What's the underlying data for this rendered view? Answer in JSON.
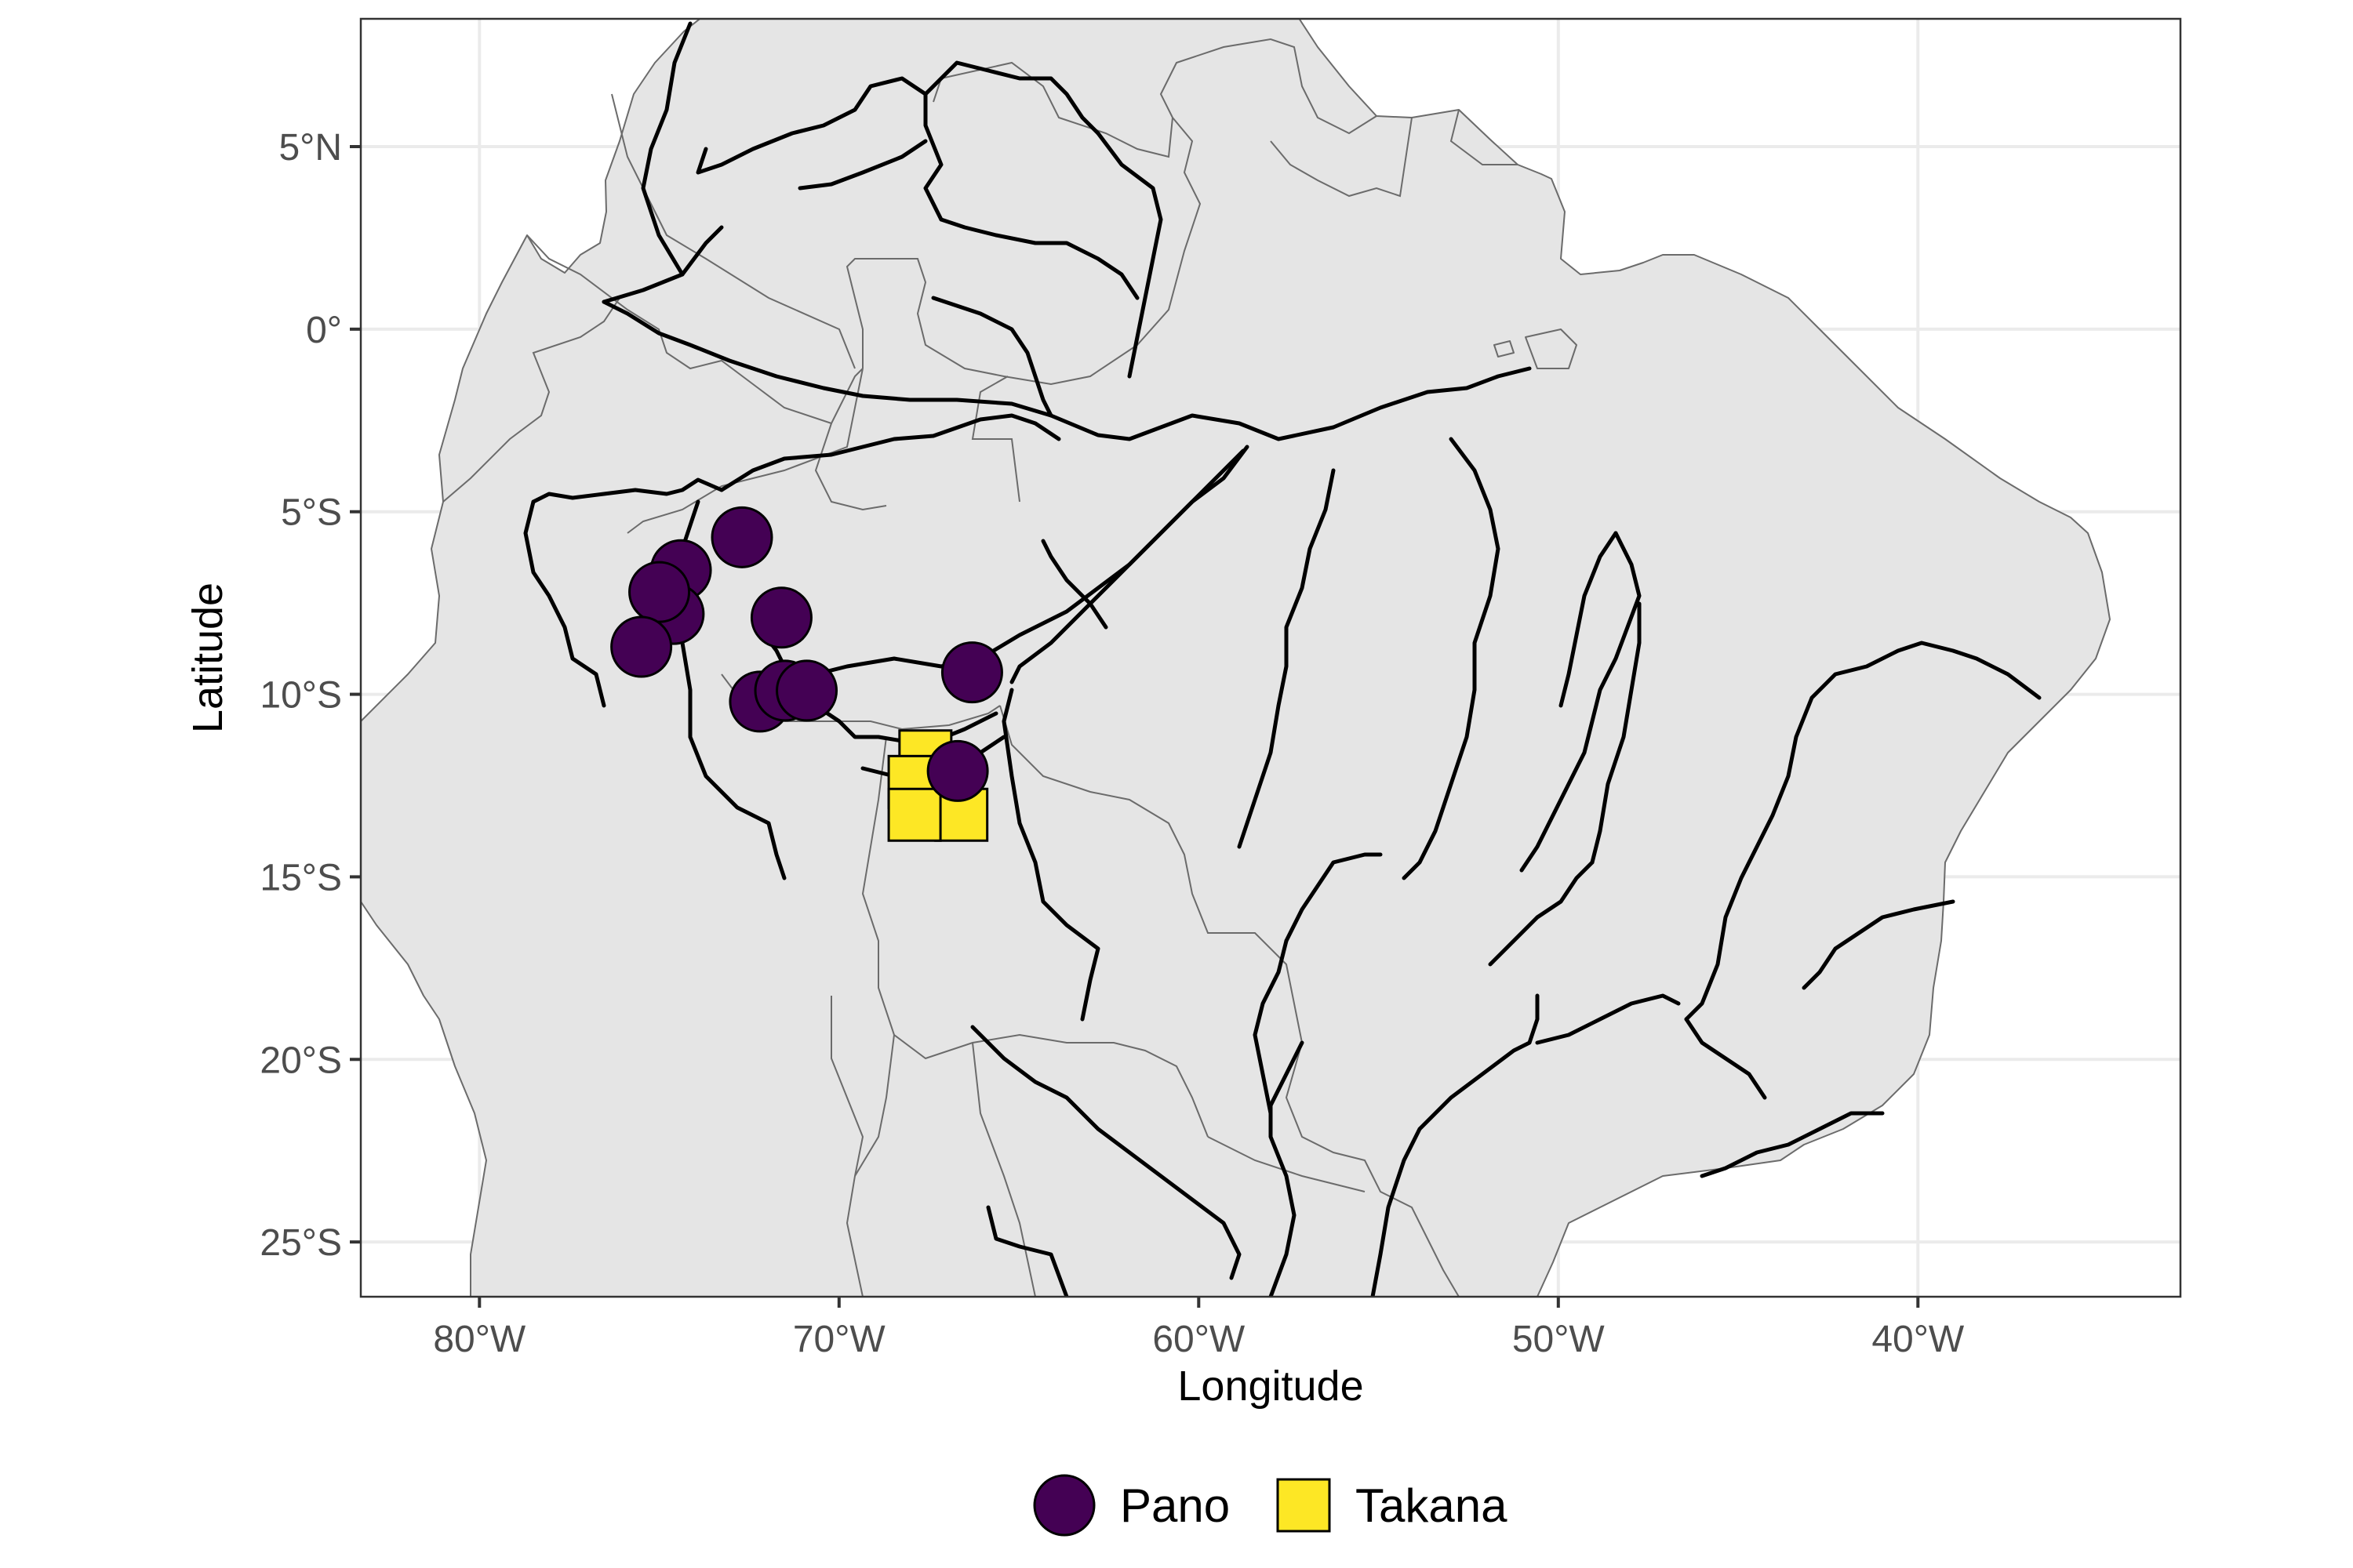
{
  "chart_data": {
    "type": "scatter",
    "title": "",
    "xlabel": "Longitude",
    "ylabel": "Latitude",
    "xlim": [
      -83.3,
      -32.7
    ],
    "ylim": [
      -26.5,
      8.5
    ],
    "x_ticks": [
      {
        "value": -80,
        "label": "80°W"
      },
      {
        "value": -70,
        "label": "70°W"
      },
      {
        "value": -60,
        "label": "60°W"
      },
      {
        "value": -50,
        "label": "50°W"
      },
      {
        "value": -40,
        "label": "40°W"
      }
    ],
    "y_ticks": [
      {
        "value": 5,
        "label": "5°N"
      },
      {
        "value": 0,
        "label": "0°"
      },
      {
        "value": -5,
        "label": "5°S"
      },
      {
        "value": -10,
        "label": "10°S"
      },
      {
        "value": -15,
        "label": "15°S"
      },
      {
        "value": -20,
        "label": "20°S"
      },
      {
        "value": -25,
        "label": "25°S"
      }
    ],
    "grid": true,
    "legend_position": "bottom",
    "colors": {
      "land": "#e5e5e5",
      "land_border": "#6b6b6b",
      "river": "#000000",
      "pano": "#440154",
      "takana": "#fde725"
    },
    "series": [
      {
        "name": "Pano",
        "marker": "circle",
        "color": "#440154",
        "points": [
          {
            "lon": -72.7,
            "lat": -5.7
          },
          {
            "lon": -74.4,
            "lat": -6.6
          },
          {
            "lon": -74.6,
            "lat": -7.8
          },
          {
            "lon": -75.0,
            "lat": -7.2
          },
          {
            "lon": -75.5,
            "lat": -8.7
          },
          {
            "lon": -71.6,
            "lat": -7.9
          },
          {
            "lon": -72.2,
            "lat": -10.2
          },
          {
            "lon": -71.5,
            "lat": -9.9
          },
          {
            "lon": -70.9,
            "lat": -9.9
          },
          {
            "lon": -66.3,
            "lat": -9.4
          },
          {
            "lon": -66.7,
            "lat": -12.1
          }
        ]
      },
      {
        "name": "Takana",
        "marker": "square",
        "color": "#fde725",
        "points": [
          {
            "lon": -67.6,
            "lat": -11.7
          },
          {
            "lon": -67.9,
            "lat": -12.4
          },
          {
            "lon": -66.6,
            "lat": -13.3
          },
          {
            "lon": -67.9,
            "lat": -13.3
          }
        ]
      }
    ]
  }
}
